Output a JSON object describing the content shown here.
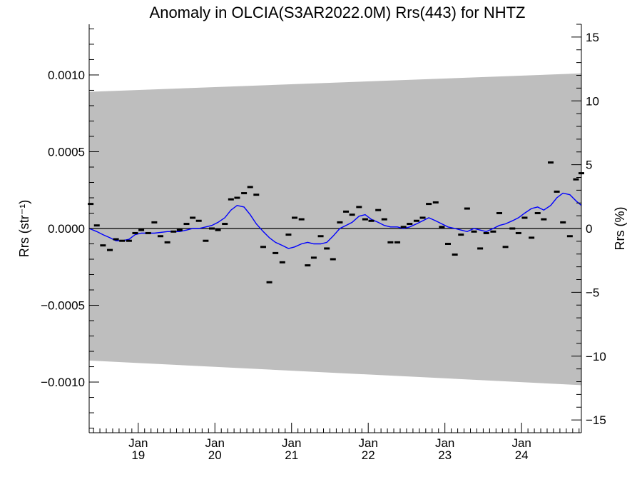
{
  "chart_data": {
    "type": "scatter",
    "title": "Anomaly in OLCIA(S3AR2022.0M) Rrs(443) for NHTZ",
    "ylabel_left": "Rrs (str⁻¹)",
    "ylabel_right": "Rrs (%)",
    "xlim": [
      2018.36,
      2024.78
    ],
    "ylim_left": [
      -0.00133,
      0.00133
    ],
    "ylim_right": [
      -16,
      16
    ],
    "x_ticks": [
      {
        "x": 2019.0,
        "month": "Jan",
        "year": "19"
      },
      {
        "x": 2020.0,
        "month": "Jan",
        "year": "20"
      },
      {
        "x": 2021.0,
        "month": "Jan",
        "year": "21"
      },
      {
        "x": 2022.0,
        "month": "Jan",
        "year": "22"
      },
      {
        "x": 2023.0,
        "month": "Jan",
        "year": "23"
      },
      {
        "x": 2024.0,
        "month": "Jan",
        "year": "24"
      }
    ],
    "y_ticks_left": [
      {
        "value": 0.001,
        "label": "0.0010"
      },
      {
        "value": 0.0005,
        "label": "0.0005"
      },
      {
        "value": 0.0,
        "label": "0.0000"
      },
      {
        "value": -0.0005,
        "label": "−0.0005"
      },
      {
        "value": -0.001,
        "label": "−0.0010"
      }
    ],
    "y_ticks_right": [
      {
        "value": 15,
        "label": "15"
      },
      {
        "value": 10,
        "label": "10"
      },
      {
        "value": 5,
        "label": "5"
      },
      {
        "value": 0,
        "label": "0"
      },
      {
        "value": -5,
        "label": "−5"
      },
      {
        "value": -10,
        "label": "−10"
      },
      {
        "value": -15,
        "label": "−15"
      }
    ],
    "uncertainty_band": {
      "x": [
        2018.36,
        2024.78
      ],
      "upper": [
        0.00089,
        0.00101
      ],
      "lower": [
        -0.00086,
        -0.00102
      ],
      "color": "#bebebe"
    },
    "points": {
      "name": "Monthly anomaly",
      "color": "#000000",
      "x": [
        2018.38,
        2018.46,
        2018.54,
        2018.63,
        2018.71,
        2018.79,
        2018.88,
        2018.96,
        2019.04,
        2019.13,
        2019.21,
        2019.29,
        2019.38,
        2019.46,
        2019.54,
        2019.63,
        2019.71,
        2019.79,
        2019.88,
        2019.96,
        2020.04,
        2020.13,
        2020.21,
        2020.29,
        2020.38,
        2020.46,
        2020.54,
        2020.63,
        2020.71,
        2020.79,
        2020.88,
        2020.96,
        2021.04,
        2021.13,
        2021.21,
        2021.29,
        2021.38,
        2021.46,
        2021.54,
        2021.63,
        2021.71,
        2021.79,
        2021.88,
        2021.96,
        2022.04,
        2022.13,
        2022.21,
        2022.29,
        2022.38,
        2022.46,
        2022.54,
        2022.63,
        2022.71,
        2022.79,
        2022.88,
        2022.96,
        2023.04,
        2023.13,
        2023.21,
        2023.29,
        2023.38,
        2023.46,
        2023.54,
        2023.63,
        2023.71,
        2023.79,
        2023.88,
        2023.96,
        2024.04,
        2024.13,
        2024.21,
        2024.29,
        2024.38,
        2024.46,
        2024.54,
        2024.63,
        2024.71,
        2024.78
      ],
      "y": [
        0.00016,
        2e-05,
        -0.00011,
        -0.00014,
        -7e-05,
        -8e-05,
        -8e-05,
        -3e-05,
        -1e-05,
        -3e-05,
        4e-05,
        -5e-05,
        -9e-05,
        -2e-05,
        -1e-05,
        3e-05,
        7e-05,
        5e-05,
        -8e-05,
        0.0,
        -1e-05,
        3e-05,
        0.00019,
        0.0002,
        0.00023,
        0.00027,
        0.00022,
        -0.00012,
        -0.00035,
        -0.00016,
        -0.00022,
        -4e-05,
        7e-05,
        6e-05,
        -0.00024,
        -0.00019,
        -5e-05,
        -0.00013,
        -0.0002,
        4e-05,
        0.00011,
        9e-05,
        0.00014,
        6e-05,
        5e-05,
        0.00012,
        6e-05,
        -9e-05,
        -9e-05,
        1e-05,
        3e-05,
        5e-05,
        7e-05,
        0.00016,
        0.00017,
        1e-05,
        -0.0001,
        -0.00017,
        -4e-05,
        0.00013,
        -2e-05,
        -0.00013,
        -3e-05,
        -2e-05,
        0.0001,
        -0.00012,
        0.0,
        -3e-05,
        7e-05,
        -6e-05,
        0.0001,
        6e-05,
        0.00043,
        0.00024,
        4e-05,
        -5e-05,
        0.00032,
        0.00036
      ]
    },
    "smoothed_line": {
      "name": "Running mean",
      "color": "#0000ff",
      "x": [
        2018.36,
        2018.46,
        2018.54,
        2018.63,
        2018.71,
        2018.79,
        2018.88,
        2018.96,
        2019.04,
        2019.21,
        2019.38,
        2019.54,
        2019.63,
        2019.71,
        2019.79,
        2019.88,
        2019.96,
        2020.04,
        2020.13,
        2020.21,
        2020.29,
        2020.38,
        2020.46,
        2020.54,
        2020.63,
        2020.71,
        2020.79,
        2020.88,
        2020.96,
        2021.04,
        2021.13,
        2021.21,
        2021.29,
        2021.38,
        2021.46,
        2021.54,
        2021.63,
        2021.71,
        2021.79,
        2021.88,
        2021.96,
        2022.04,
        2022.13,
        2022.21,
        2022.29,
        2022.38,
        2022.46,
        2022.54,
        2022.63,
        2022.71,
        2022.79,
        2022.88,
        2022.96,
        2023.04,
        2023.13,
        2023.21,
        2023.29,
        2023.38,
        2023.46,
        2023.54,
        2023.63,
        2023.71,
        2023.79,
        2023.88,
        2023.96,
        2024.04,
        2024.13,
        2024.21,
        2024.29,
        2024.38,
        2024.46,
        2024.54,
        2024.63,
        2024.71,
        2024.78
      ],
      "y": [
        0.0,
        -2e-05,
        -4e-05,
        -6e-05,
        -8e-05,
        -8e-05,
        -7e-05,
        -4e-05,
        -3e-05,
        -3e-05,
        -2e-05,
        -2e-05,
        -1e-05,
        0.0,
        0.0,
        1e-05,
        2e-05,
        4e-05,
        7e-05,
        0.00012,
        0.00015,
        0.00014,
        9e-05,
        3e-05,
        -2e-05,
        -6e-05,
        -9e-05,
        -0.00011,
        -0.00013,
        -0.00012,
        -0.0001,
        -9e-05,
        -0.0001,
        -0.0001,
        -9e-05,
        -5e-05,
        0.0,
        2e-05,
        4e-05,
        8e-05,
        9e-05,
        6e-05,
        4e-05,
        2e-05,
        1e-05,
        1e-05,
        0.0,
        1e-05,
        3e-05,
        5e-05,
        7e-05,
        5e-05,
        3e-05,
        1e-05,
        0.0,
        -1e-05,
        -2e-05,
        0.0,
        -1e-05,
        -2e-05,
        0.0,
        2e-05,
        3e-05,
        5e-05,
        7e-05,
        0.0001,
        0.00013,
        0.00014,
        0.00012,
        0.00015,
        0.0002,
        0.00023,
        0.00022,
        0.00018,
        0.00015
      ]
    },
    "zero_line": 0.0,
    "grid": false,
    "legend": "none"
  }
}
